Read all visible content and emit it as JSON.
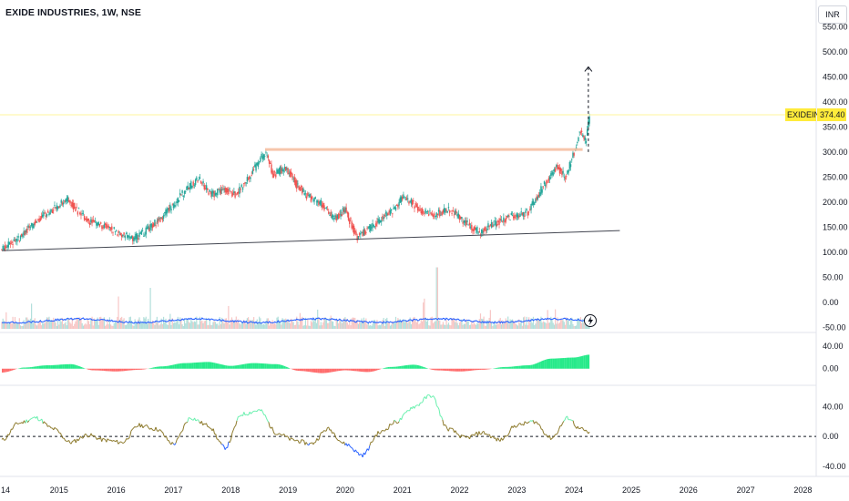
{
  "header": {
    "title": "EXIDE INDUSTRIES, 1W, NSE",
    "currency": "INR"
  },
  "price_tag": {
    "symbol": "EXIDEIND",
    "value": "374.40"
  },
  "colors": {
    "up": "#26a69a",
    "down": "#ef5350",
    "tag": "#ffeb3b",
    "ma": "#2962ff"
  },
  "chart_data": [
    {
      "type": "candlestick",
      "title": "",
      "x_ticks": [
        "14",
        "2015",
        "2016",
        "2017",
        "2018",
        "2019",
        "2020",
        "2021",
        "2022",
        "2023",
        "2024",
        "2025",
        "2026",
        "2027",
        "2028"
      ],
      "x_range": [
        2014.0,
        2028.2
      ],
      "y_ticks": [
        "550.00",
        "500.00",
        "450.00",
        "400.00",
        "350.00",
        "300.00",
        "250.00",
        "200.00",
        "150.00",
        "100.00",
        "50.00",
        "0.00",
        "-50.00"
      ],
      "ylim": [
        -55,
        560
      ],
      "last_price": 374.4,
      "price_path": [
        [
          2014.0,
          105
        ],
        [
          2014.25,
          125
        ],
        [
          2014.5,
          150
        ],
        [
          2014.75,
          175
        ],
        [
          2015.0,
          195
        ],
        [
          2015.15,
          205
        ],
        [
          2015.35,
          180
        ],
        [
          2015.55,
          160
        ],
        [
          2015.8,
          152
        ],
        [
          2016.1,
          135
        ],
        [
          2016.25,
          125
        ],
        [
          2016.5,
          140
        ],
        [
          2016.75,
          165
        ],
        [
          2017.0,
          195
        ],
        [
          2017.25,
          230
        ],
        [
          2017.45,
          245
        ],
        [
          2017.65,
          215
        ],
        [
          2017.9,
          225
        ],
        [
          2018.1,
          215
        ],
        [
          2018.35,
          255
        ],
        [
          2018.6,
          300
        ],
        [
          2018.75,
          255
        ],
        [
          2018.95,
          270
        ],
        [
          2019.15,
          235
        ],
        [
          2019.35,
          210
        ],
        [
          2019.6,
          195
        ],
        [
          2019.8,
          165
        ],
        [
          2020.0,
          185
        ],
        [
          2020.2,
          130
        ],
        [
          2020.4,
          145
        ],
        [
          2020.6,
          165
        ],
        [
          2020.85,
          185
        ],
        [
          2021.0,
          210
        ],
        [
          2021.15,
          200
        ],
        [
          2021.3,
          185
        ],
        [
          2021.55,
          175
        ],
        [
          2021.8,
          185
        ],
        [
          2022.0,
          170
        ],
        [
          2022.2,
          150
        ],
        [
          2022.35,
          140
        ],
        [
          2022.5,
          150
        ],
        [
          2022.75,
          165
        ],
        [
          2023.0,
          175
        ],
        [
          2023.2,
          180
        ],
        [
          2023.45,
          230
        ],
        [
          2023.7,
          270
        ],
        [
          2023.85,
          250
        ],
        [
          2024.0,
          300
        ],
        [
          2024.1,
          345
        ],
        [
          2024.2,
          320
        ],
        [
          2024.27,
          374.4
        ]
      ],
      "lines": {
        "support_trendline": {
          "from": [
            2014.0,
            103
          ],
          "to": [
            2024.8,
            143
          ]
        },
        "resistance": {
          "from": [
            2018.6,
            305
          ],
          "to": [
            2024.15,
            305
          ]
        },
        "projection_arrow": {
          "from": [
            2024.25,
            300
          ],
          "to": [
            2024.25,
            470
          ]
        },
        "last_price_line": 374.4
      }
    },
    {
      "type": "area",
      "title": "",
      "y_ticks": [
        "40.00",
        "0.00"
      ],
      "ylim": [
        -25,
        60
      ],
      "x": [
        2014.0,
        2014.4,
        2014.8,
        2015.2,
        2015.6,
        2016.0,
        2016.4,
        2016.8,
        2017.2,
        2017.6,
        2018.0,
        2018.4,
        2018.8,
        2019.2,
        2019.6,
        2020.0,
        2020.4,
        2020.8,
        2021.2,
        2021.6,
        2022.0,
        2022.4,
        2022.8,
        2023.2,
        2023.6,
        2024.0,
        2024.27
      ],
      "values": [
        -7,
        2,
        6,
        8,
        -3,
        -5,
        -2,
        4,
        10,
        12,
        5,
        10,
        8,
        -4,
        -8,
        -3,
        -6,
        3,
        7,
        -3,
        -5,
        -2,
        3,
        6,
        18,
        20,
        25
      ]
    },
    {
      "type": "line",
      "title": "",
      "y_ticks": [
        "40.00",
        "0.00",
        "-40.00"
      ],
      "ylim": [
        -50,
        65
      ],
      "reference_line": 0,
      "x": [
        2014.0,
        2014.3,
        2014.6,
        2014.9,
        2015.2,
        2015.5,
        2015.8,
        2016.1,
        2016.4,
        2016.7,
        2017.0,
        2017.3,
        2017.6,
        2017.9,
        2018.2,
        2018.5,
        2018.8,
        2019.1,
        2019.4,
        2019.7,
        2020.0,
        2020.3,
        2020.6,
        2020.9,
        2021.2,
        2021.5,
        2021.8,
        2022.1,
        2022.4,
        2022.7,
        2023.0,
        2023.3,
        2023.6,
        2023.9,
        2024.1,
        2024.27
      ],
      "values": [
        -5,
        18,
        25,
        10,
        -8,
        2,
        -5,
        -8,
        15,
        10,
        -10,
        25,
        15,
        -15,
        30,
        35,
        5,
        -5,
        -10,
        10,
        -10,
        -25,
        5,
        20,
        40,
        55,
        10,
        -2,
        5,
        -5,
        15,
        20,
        -2,
        25,
        10,
        5
      ]
    }
  ]
}
